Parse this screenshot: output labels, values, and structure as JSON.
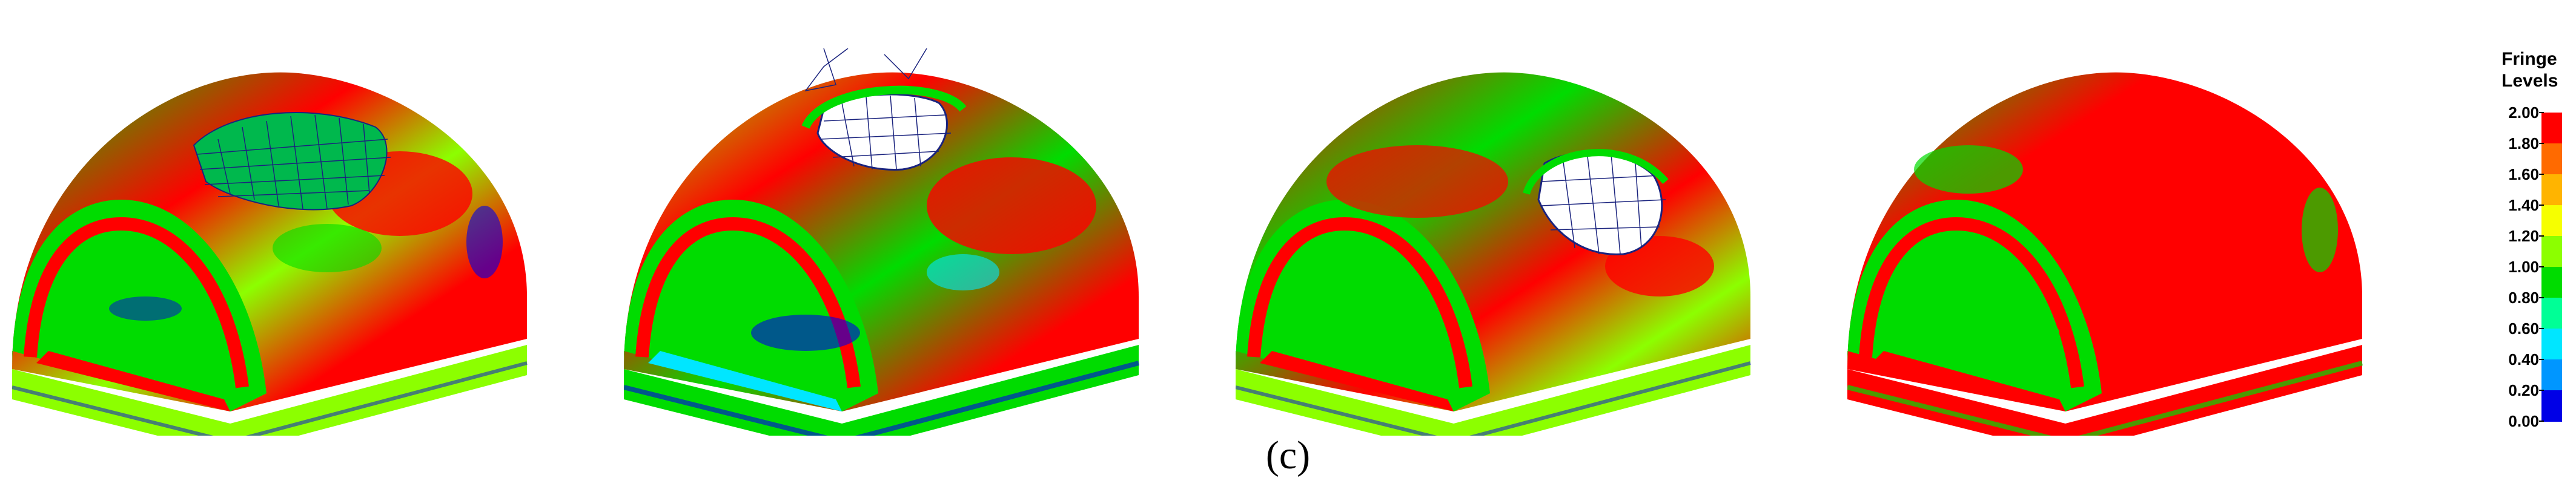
{
  "caption": "(c)",
  "legend": {
    "title_line1": "Fringe",
    "title_line2": "Levels",
    "levels": [
      "2.00",
      "1.80",
      "1.60",
      "1.40",
      "1.20",
      "1.00",
      "0.80",
      "0.60",
      "0.40",
      "0.20",
      "0.00"
    ],
    "colors": [
      "#ff0000",
      "#ff6a00",
      "#ffb400",
      "#f6ff00",
      "#8cff00",
      "#00dc00",
      "#00ff96",
      "#00e6ff",
      "#0096ff",
      "#0000e6"
    ]
  },
  "colors": {
    "high": "#ff0000",
    "mid": "#00dc00",
    "mid_high": "#8cff00",
    "low": "#0000e6",
    "cyan": "#00e6ff",
    "mesh": "#1a237e"
  }
}
